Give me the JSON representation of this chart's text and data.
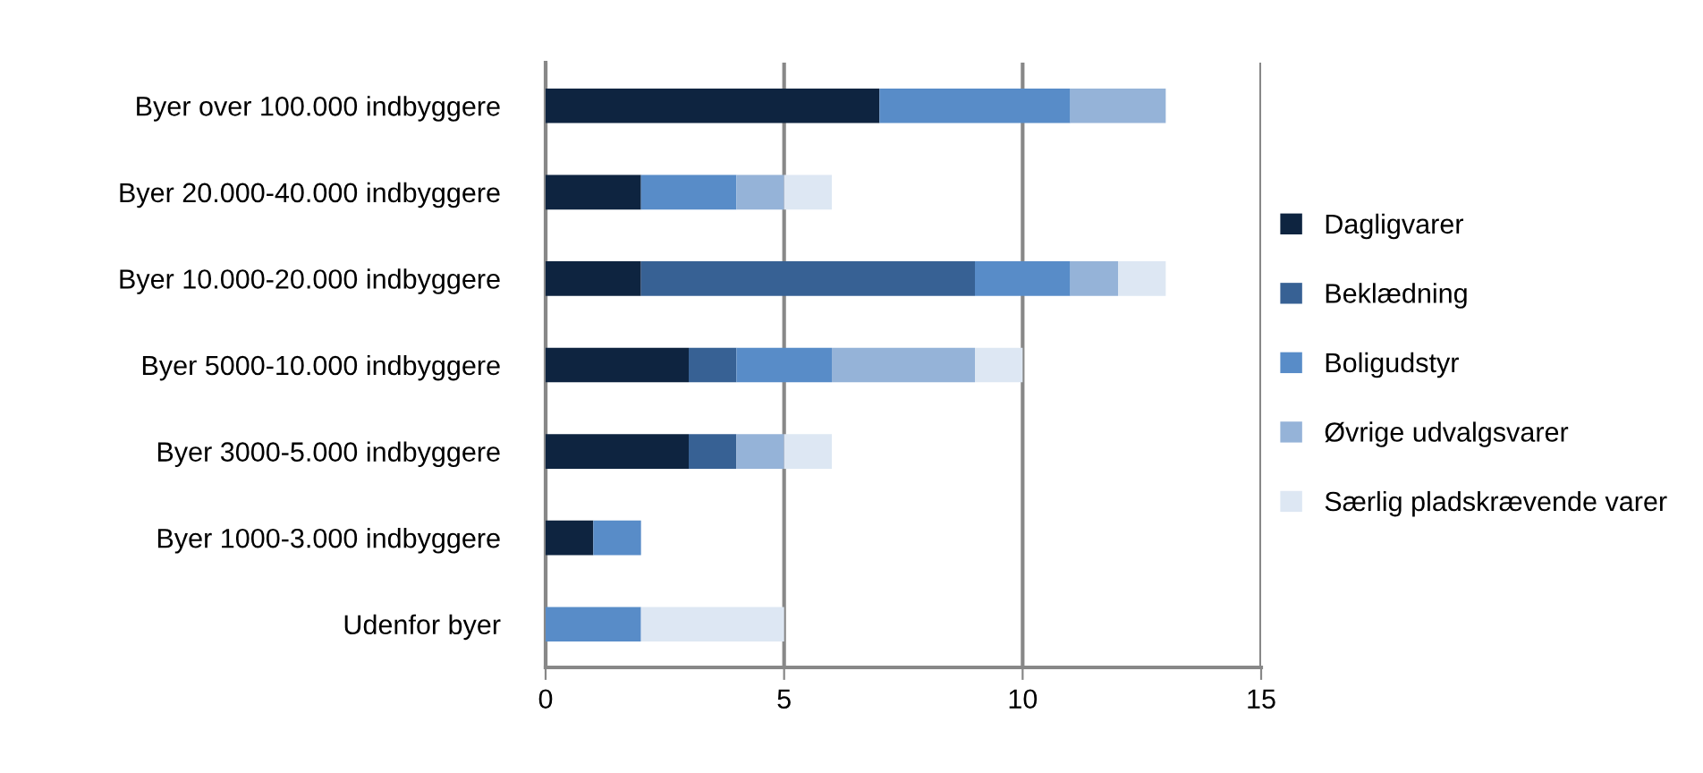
{
  "chart_data": {
    "type": "bar",
    "orientation": "horizontal",
    "stacked": true,
    "categories": [
      "Byer over 100.000 indbyggere",
      "Byer 20.000-40.000 indbyggere",
      "Byer 10.000-20.000 indbyggere",
      "Byer 5000-10.000 indbyggere",
      "Byer 3000-5.000 indbyggere",
      "Byer 1000-3.000 indbyggere",
      "Udenfor byer"
    ],
    "series": [
      {
        "name": "Dagligvarer",
        "color": "#0e2440",
        "values": [
          7,
          2,
          2,
          3,
          3,
          1,
          0
        ]
      },
      {
        "name": "Beklædning",
        "color": "#376194",
        "values": [
          0,
          0,
          7,
          1,
          1,
          0,
          0
        ]
      },
      {
        "name": "Boligudstyr",
        "color": "#588cc8",
        "values": [
          4,
          2,
          2,
          2,
          0,
          1,
          2
        ]
      },
      {
        "name": "Øvrige udvalgsvarer",
        "color": "#95b3d8",
        "values": [
          2,
          1,
          1,
          3,
          1,
          0,
          0
        ]
      },
      {
        "name": "Særlig pladskrævende varer",
        "color": "#dde7f3",
        "values": [
          0,
          1,
          1,
          1,
          1,
          0,
          3
        ]
      }
    ],
    "xlim": [
      0,
      15
    ],
    "xticks": [
      0,
      5,
      10,
      15
    ],
    "grid": "x",
    "legend": "right"
  }
}
